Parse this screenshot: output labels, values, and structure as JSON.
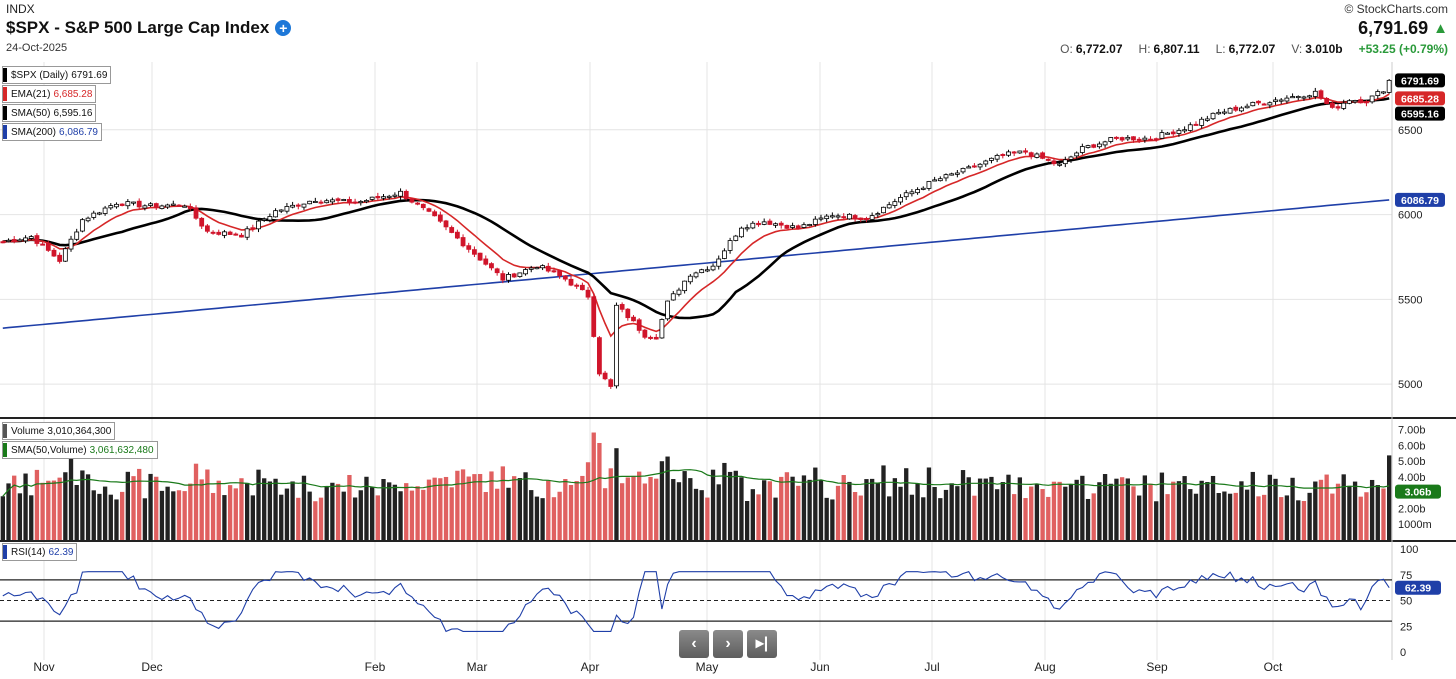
{
  "header": {
    "exchange": "INDX",
    "title": "$SPX - S&P 500 Large Cap Index",
    "date": "24-Oct-2025",
    "brand": "© StockCharts.com",
    "last": "6,791.69",
    "ohlc": [
      {
        "label": "O:",
        "value": "6,772.07"
      },
      {
        "label": "H:",
        "value": "6,807.11"
      },
      {
        "label": "L:",
        "value": "6,772.07"
      },
      {
        "label": "V:",
        "value": "3.010b"
      }
    ],
    "change": "+53.25 (+0.79%)"
  },
  "legend": {
    "price": {
      "label": "$SPX (Daily)",
      "value": "6791.69",
      "color": "#000000"
    },
    "ema21": {
      "label": "EMA(21)",
      "value": "6,685.28",
      "color": "#d62728"
    },
    "sma50": {
      "label": "SMA(50)",
      "value": "6,595.16",
      "color": "#000000"
    },
    "sma200": {
      "label": "SMA(200)",
      "value": "6,086.79",
      "color": "#1f3fa8"
    },
    "volume": {
      "label": "Volume",
      "value": "3,010,364,300",
      "color": "#555555"
    },
    "vol_sma": {
      "label": "SMA(50,Volume)",
      "value": "3,061,632,480",
      "color": "#1a7a1a"
    },
    "rsi": {
      "label": "RSI(14)",
      "value": "62.39",
      "color": "#1f3fa8"
    }
  },
  "chart_data": {
    "type": "candlestick",
    "x_tick_labels": [
      "Nov",
      "Dec",
      "Feb",
      "Mar",
      "Apr",
      "May",
      "Jun",
      "Jul",
      "Aug",
      "Sep",
      "Oct"
    ],
    "price_ticks": [
      "6500",
      "6000",
      "5500",
      "5000"
    ],
    "price_ylim": [
      4800,
      6900
    ],
    "price_anchors": [
      {
        "bar": 0,
        "close": 5840
      },
      {
        "bar": 5,
        "close": 5870
      },
      {
        "bar": 10,
        "close": 5730
      },
      {
        "bar": 14,
        "close": 5970
      },
      {
        "bar": 20,
        "close": 6070
      },
      {
        "bar": 26,
        "close": 6050
      },
      {
        "bar": 32,
        "close": 6060
      },
      {
        "bar": 36,
        "close": 5900
      },
      {
        "bar": 42,
        "close": 5880
      },
      {
        "bar": 48,
        "close": 6020
      },
      {
        "bar": 55,
        "close": 6090
      },
      {
        "bar": 62,
        "close": 6070
      },
      {
        "bar": 70,
        "close": 6130
      },
      {
        "bar": 76,
        "close": 5980
      },
      {
        "bar": 82,
        "close": 5800
      },
      {
        "bar": 88,
        "close": 5620
      },
      {
        "bar": 94,
        "close": 5700
      },
      {
        "bar": 99,
        "close": 5620
      },
      {
        "bar": 103,
        "close": 5520
      },
      {
        "bar": 105,
        "close": 5070
      },
      {
        "bar": 107,
        "close": 4980
      },
      {
        "bar": 108,
        "close": 5460
      },
      {
        "bar": 110,
        "close": 5400
      },
      {
        "bar": 113,
        "close": 5290
      },
      {
        "bar": 115,
        "close": 5280
      },
      {
        "bar": 117,
        "close": 5480
      },
      {
        "bar": 121,
        "close": 5650
      },
      {
        "bar": 125,
        "close": 5700
      },
      {
        "bar": 130,
        "close": 5930
      },
      {
        "bar": 134,
        "close": 5960
      },
      {
        "bar": 140,
        "close": 5920
      },
      {
        "bar": 146,
        "close": 6000
      },
      {
        "bar": 152,
        "close": 5980
      },
      {
        "bar": 158,
        "close": 6100
      },
      {
        "bar": 164,
        "close": 6200
      },
      {
        "bar": 170,
        "close": 6270
      },
      {
        "bar": 176,
        "close": 6350
      },
      {
        "bar": 180,
        "close": 6370
      },
      {
        "bar": 186,
        "close": 6290
      },
      {
        "bar": 190,
        "close": 6390
      },
      {
        "bar": 196,
        "close": 6450
      },
      {
        "bar": 202,
        "close": 6450
      },
      {
        "bar": 208,
        "close": 6510
      },
      {
        "bar": 214,
        "close": 6600
      },
      {
        "bar": 220,
        "close": 6650
      },
      {
        "bar": 226,
        "close": 6690
      },
      {
        "bar": 231,
        "close": 6720
      },
      {
        "bar": 234,
        "close": 6620
      },
      {
        "bar": 237,
        "close": 6680
      },
      {
        "bar": 240,
        "close": 6670
      },
      {
        "bar": 243,
        "close": 6738
      },
      {
        "bar": 244,
        "close": 6791.69
      }
    ],
    "sma200_range": [
      5330,
      6086.79
    ],
    "right_labels": [
      {
        "text": "6791.69",
        "value": 6791.69,
        "bg": "#000000",
        "fg": "#ffffff"
      },
      {
        "text": "6685.28",
        "value": 6685.28,
        "bg": "#d62728",
        "fg": "#ffffff"
      },
      {
        "text": "6595.16",
        "value": 6595.16,
        "bg": "#000000",
        "fg": "#ffffff"
      },
      {
        "text": "6086.79",
        "value": 6086.79,
        "bg": "#1f3fa8",
        "fg": "#ffffff"
      }
    ],
    "volume_ticks": [
      "7.00b",
      "6.00b",
      "5.00b",
      "4.00b",
      "2.00b",
      "1000m"
    ],
    "volume_ylim": [
      0,
      7.6
    ],
    "volume_last_label": "3.06b",
    "rsi_ticks": [
      "100",
      "75",
      "50",
      "25",
      "0"
    ],
    "rsi_ylim": [
      0,
      100
    ],
    "rsi_levels": [
      70,
      50,
      30
    ],
    "rsi_last": 62.39
  },
  "nav": {
    "prev": "‹",
    "next": "›",
    "end": "▸|"
  }
}
